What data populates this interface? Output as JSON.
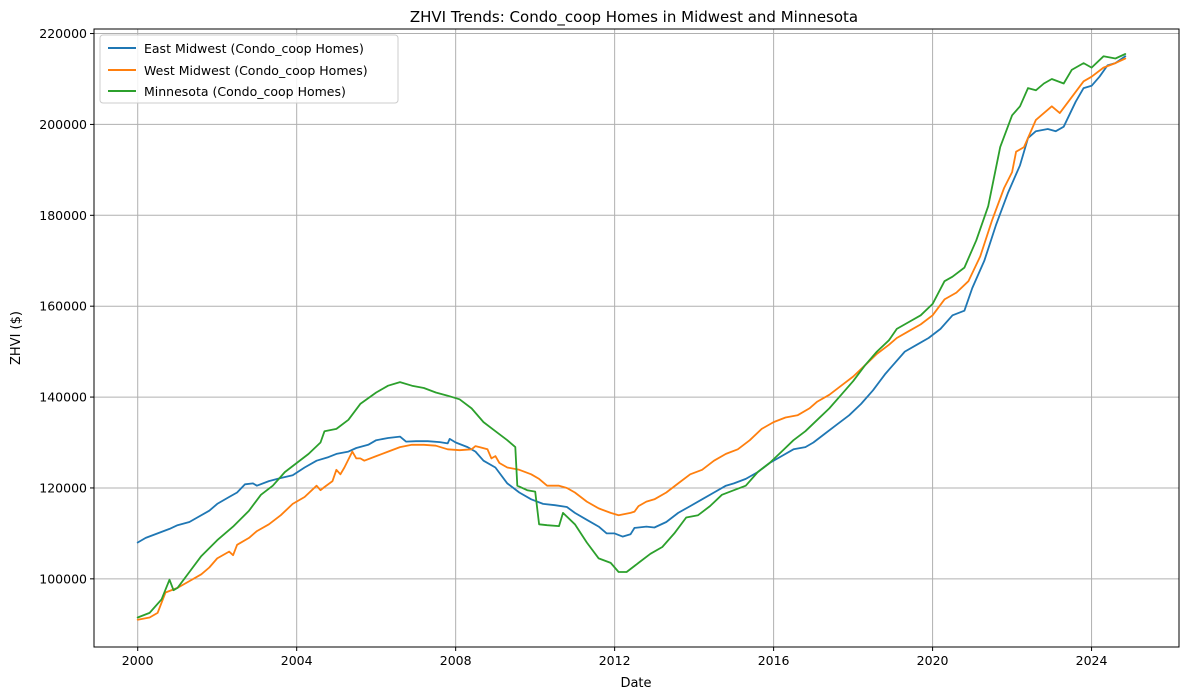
{
  "chart_data": {
    "type": "line",
    "title": "ZHVI Trends: Condo_coop Homes in Midwest and Minnesota",
    "xlabel": "Date",
    "ylabel": "ZHVI ($)",
    "xlim": [
      1998.9,
      2026.2
    ],
    "ylim": [
      85000,
      221000
    ],
    "xticks": [
      "2000",
      "2004",
      "2008",
      "2012",
      "2016",
      "2020",
      "2024"
    ],
    "yticks": [
      "100000",
      "120000",
      "140000",
      "160000",
      "180000",
      "200000",
      "220000"
    ],
    "grid": true,
    "legend_position": "top-left",
    "series": [
      {
        "name": "East Midwest (Condo_coop Homes)",
        "color": "#1f77b4",
        "x": [
          2000.0,
          2000.2,
          2000.5,
          2000.8,
          2001.0,
          2001.3,
          2001.5,
          2001.8,
          2002.0,
          2002.3,
          2002.5,
          2002.7,
          2002.9,
          2003.0,
          2003.3,
          2003.6,
          2003.9,
          2004.2,
          2004.5,
          2004.8,
          2005.0,
          2005.3,
          2005.5,
          2005.8,
          2006.0,
          2006.3,
          2006.6,
          2006.75,
          2007.0,
          2007.3,
          2007.6,
          2007.8,
          2007.85,
          2008.0,
          2008.3,
          2008.5,
          2008.7,
          2009.0,
          2009.3,
          2009.6,
          2009.9,
          2010.2,
          2010.5,
          2010.8,
          2011.0,
          2011.3,
          2011.6,
          2011.8,
          2012.0,
          2012.2,
          2012.4,
          2012.5,
          2012.8,
          2013.0,
          2013.3,
          2013.6,
          2013.9,
          2014.2,
          2014.5,
          2014.8,
          2015.0,
          2015.3,
          2015.6,
          2015.9,
          2016.2,
          2016.5,
          2016.8,
          2017.0,
          2017.3,
          2017.6,
          2017.9,
          2018.2,
          2018.5,
          2018.8,
          2019.0,
          2019.3,
          2019.6,
          2019.9,
          2020.2,
          2020.5,
          2020.8,
          2021.0,
          2021.3,
          2021.6,
          2021.9,
          2022.2,
          2022.4,
          2022.6,
          2022.9,
          2023.1,
          2023.3,
          2023.6,
          2023.8,
          2024.0,
          2024.2,
          2024.4,
          2024.6,
          2024.85
        ],
        "values": [
          108000,
          109000,
          110000,
          111000,
          111800,
          112500,
          113500,
          115000,
          116500,
          118000,
          119000,
          120800,
          121000,
          120500,
          121500,
          122200,
          122800,
          124500,
          126000,
          126800,
          127500,
          128000,
          128800,
          129500,
          130500,
          131000,
          131300,
          130200,
          130300,
          130300,
          130100,
          129800,
          130800,
          130000,
          129000,
          128000,
          126000,
          124500,
          121000,
          119000,
          117500,
          116500,
          116200,
          115800,
          114500,
          113000,
          111500,
          110000,
          110000,
          109300,
          109800,
          111200,
          111500,
          111300,
          112500,
          114500,
          116000,
          117500,
          119000,
          120500,
          121000,
          122000,
          123500,
          125500,
          127000,
          128500,
          129000,
          130000,
          132000,
          134000,
          136000,
          138500,
          141500,
          145000,
          147000,
          150000,
          151500,
          153000,
          155000,
          158000,
          159000,
          164000,
          170000,
          178000,
          185000,
          191000,
          197000,
          198500,
          199000,
          198500,
          199500,
          205000,
          208000,
          208500,
          210500,
          213000,
          213500,
          215000
        ]
      },
      {
        "name": "West Midwest (Condo_coop Homes)",
        "color": "#ff7f0e",
        "x": [
          2000.0,
          2000.3,
          2000.5,
          2000.7,
          2001.0,
          2001.3,
          2001.6,
          2001.8,
          2002.0,
          2002.3,
          2002.4,
          2002.5,
          2002.8,
          2003.0,
          2003.3,
          2003.6,
          2003.9,
          2004.2,
          2004.5,
          2004.6,
          2004.7,
          2004.9,
          2005.0,
          2005.1,
          2005.2,
          2005.4,
          2005.5,
          2005.6,
          2005.7,
          2006.0,
          2006.3,
          2006.6,
          2006.9,
          2007.2,
          2007.5,
          2007.8,
          2008.1,
          2008.4,
          2008.5,
          2008.6,
          2008.8,
          2008.9,
          2009.0,
          2009.1,
          2009.3,
          2009.6,
          2009.9,
          2010.1,
          2010.3,
          2010.6,
          2010.8,
          2011.0,
          2011.3,
          2011.6,
          2011.9,
          2012.1,
          2012.4,
          2012.5,
          2012.6,
          2012.8,
          2013.0,
          2013.3,
          2013.6,
          2013.9,
          2014.2,
          2014.5,
          2014.8,
          2015.1,
          2015.4,
          2015.7,
          2016.0,
          2016.3,
          2016.6,
          2016.9,
          2017.1,
          2017.4,
          2017.7,
          2018.0,
          2018.3,
          2018.6,
          2018.9,
          2019.1,
          2019.4,
          2019.7,
          2020.0,
          2020.3,
          2020.6,
          2020.9,
          2021.2,
          2021.5,
          2021.8,
          2022.0,
          2022.1,
          2022.3,
          2022.6,
          2022.8,
          2023.0,
          2023.2,
          2023.5,
          2023.8,
          2024.0,
          2024.3,
          2024.6,
          2024.85
        ],
        "values": [
          91000,
          91500,
          92500,
          97000,
          98000,
          99500,
          101000,
          102500,
          104500,
          106000,
          105200,
          107500,
          109000,
          110500,
          112000,
          114000,
          116500,
          118000,
          120500,
          119500,
          120200,
          121500,
          124000,
          123000,
          124500,
          128000,
          126500,
          126500,
          126000,
          127000,
          128000,
          129000,
          129500,
          129500,
          129300,
          128500,
          128300,
          128500,
          129200,
          129000,
          128500,
          126500,
          127000,
          125500,
          124500,
          124000,
          123000,
          122000,
          120500,
          120500,
          120000,
          119000,
          117000,
          115500,
          114500,
          114000,
          114500,
          114800,
          116000,
          117000,
          117500,
          119000,
          121000,
          123000,
          124000,
          126000,
          127500,
          128500,
          130500,
          133000,
          134500,
          135500,
          136000,
          137500,
          139000,
          140500,
          142500,
          144500,
          147000,
          149500,
          151500,
          153000,
          154500,
          156000,
          158000,
          161500,
          163000,
          165500,
          171000,
          179000,
          186000,
          189500,
          194000,
          195000,
          201000,
          202500,
          204000,
          202500,
          206000,
          209500,
          210500,
          212500,
          213500,
          214500
        ]
      },
      {
        "name": "Minnesota (Condo_coop Homes)",
        "color": "#2ca02c",
        "x": [
          2000.0,
          2000.3,
          2000.6,
          2000.8,
          2000.9,
          2001.0,
          2001.3,
          2001.6,
          2002.0,
          2002.4,
          2002.8,
          2003.1,
          2003.4,
          2003.7,
          2004.0,
          2004.3,
          2004.6,
          2004.7,
          2005.0,
          2005.3,
          2005.6,
          2006.0,
          2006.3,
          2006.6,
          2006.9,
          2007.2,
          2007.5,
          2007.8,
          2008.1,
          2008.4,
          2008.7,
          2009.0,
          2009.3,
          2009.5,
          2009.55,
          2009.8,
          2010.0,
          2010.1,
          2010.3,
          2010.6,
          2010.7,
          2011.0,
          2011.3,
          2011.6,
          2011.9,
          2012.1,
          2012.3,
          2012.6,
          2012.9,
          2013.2,
          2013.5,
          2013.8,
          2014.1,
          2014.4,
          2014.7,
          2015.0,
          2015.3,
          2015.6,
          2015.9,
          2016.2,
          2016.5,
          2016.8,
          2017.1,
          2017.4,
          2017.7,
          2018.0,
          2018.3,
          2018.6,
          2018.9,
          2019.1,
          2019.4,
          2019.7,
          2020.0,
          2020.3,
          2020.5,
          2020.8,
          2021.1,
          2021.4,
          2021.7,
          2022.0,
          2022.2,
          2022.4,
          2022.6,
          2022.8,
          2023.0,
          2023.3,
          2023.5,
          2023.8,
          2024.0,
          2024.3,
          2024.6,
          2024.85
        ],
        "values": [
          91500,
          92500,
          95500,
          99800,
          97500,
          98000,
          101500,
          105000,
          108500,
          111500,
          115000,
          118500,
          120500,
          123500,
          125500,
          127500,
          130000,
          132500,
          133000,
          135000,
          138500,
          141000,
          142500,
          143300,
          142500,
          142000,
          141000,
          140300,
          139500,
          137500,
          134500,
          132500,
          130500,
          129000,
          120500,
          119500,
          119200,
          112000,
          111800,
          111600,
          114500,
          112000,
          108000,
          104500,
          103500,
          101500,
          101500,
          103500,
          105500,
          107000,
          110000,
          113500,
          114000,
          116000,
          118500,
          119500,
          120500,
          123500,
          125500,
          128000,
          130500,
          132500,
          135000,
          137500,
          140500,
          143500,
          147000,
          150000,
          152500,
          155000,
          156500,
          158000,
          160500,
          165500,
          166500,
          168500,
          174500,
          182000,
          195000,
          202000,
          204000,
          208000,
          207500,
          209000,
          210000,
          209000,
          212000,
          213500,
          212500,
          215000,
          214500,
          215500
        ]
      }
    ]
  }
}
